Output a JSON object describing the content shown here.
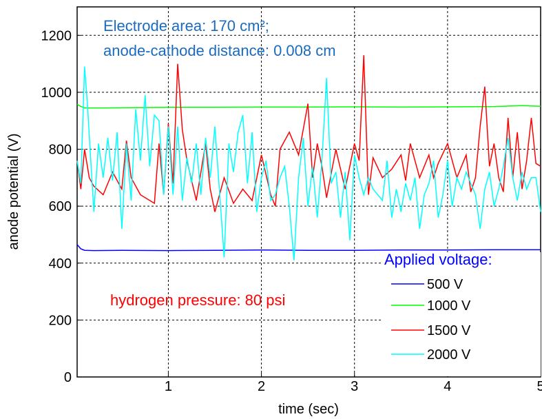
{
  "chart_data": {
    "type": "line",
    "xlabel": "time (sec)",
    "ylabel": "anode potential (V)",
    "xlim": [
      0.02,
      5.0
    ],
    "ylim": [
      0,
      1300
    ],
    "xticks": [
      1,
      2,
      3,
      4,
      5
    ],
    "yticks": [
      0,
      200,
      400,
      600,
      800,
      1000,
      1200
    ],
    "grid": true,
    "annotations": {
      "electrode_line1": "Electrode area: 170 cm²;",
      "electrode_line2": "anode-cathode distance: 0.008 cm",
      "pressure": "hydrogen pressure: 80 psi",
      "legend_title": "Applied voltage:"
    },
    "colors": {
      "s500": "#0000ff",
      "s1000": "#00ff00",
      "s1500": "#ff0000",
      "s2000": "#00ffff",
      "annot_blue": "#1a6bbf",
      "annot_red": "#ff0000",
      "legend_title": "#0000ff"
    },
    "series": [
      {
        "name": "500 V",
        "x": [
          0.02,
          0.06,
          0.1,
          0.2,
          0.5,
          1.0,
          1.5,
          2.0,
          2.5,
          3.0,
          3.5,
          4.0,
          4.5,
          5.0
        ],
        "values": [
          465,
          450,
          445,
          444,
          445,
          444,
          445,
          446,
          445,
          445,
          446,
          446,
          447,
          447
        ]
      },
      {
        "name": "1000 V",
        "x": [
          0.02,
          0.06,
          0.1,
          0.3,
          0.6,
          1.0,
          1.5,
          2.0,
          2.5,
          3.0,
          3.5,
          4.0,
          4.5,
          4.8,
          5.0
        ],
        "values": [
          958,
          950,
          945,
          945,
          946,
          947,
          947,
          948,
          948,
          949,
          948,
          949,
          950,
          953,
          951
        ]
      },
      {
        "name": "1500 V",
        "x": [
          0.02,
          0.06,
          0.1,
          0.15,
          0.2,
          0.3,
          0.4,
          0.5,
          0.55,
          0.6,
          0.7,
          0.8,
          0.85,
          0.9,
          0.95,
          1.0,
          1.05,
          1.1,
          1.15,
          1.2,
          1.3,
          1.4,
          1.45,
          1.5,
          1.6,
          1.7,
          1.8,
          1.9,
          2.0,
          2.1,
          2.15,
          2.2,
          2.3,
          2.4,
          2.5,
          2.55,
          2.6,
          2.65,
          2.7,
          2.8,
          2.9,
          3.0,
          3.05,
          3.1,
          3.15,
          3.2,
          3.3,
          3.4,
          3.5,
          3.55,
          3.6,
          3.7,
          3.8,
          3.85,
          3.9,
          4.0,
          4.1,
          4.2,
          4.25,
          4.3,
          4.35,
          4.4,
          4.45,
          4.5,
          4.55,
          4.6,
          4.65,
          4.7,
          4.75,
          4.8,
          4.85,
          4.9,
          4.95,
          5.0
        ],
        "values": [
          760,
          660,
          800,
          700,
          670,
          640,
          720,
          660,
          830,
          700,
          640,
          620,
          610,
          820,
          640,
          890,
          680,
          1100,
          870,
          760,
          620,
          820,
          660,
          580,
          700,
          610,
          660,
          620,
          780,
          640,
          600,
          800,
          860,
          780,
          960,
          700,
          820,
          740,
          630,
          800,
          660,
          820,
          760,
          1130,
          640,
          770,
          700,
          730,
          780,
          690,
          820,
          700,
          780,
          700,
          750,
          820,
          700,
          780,
          650,
          700,
          880,
          1020,
          740,
          820,
          700,
          650,
          910,
          700,
          860,
          660,
          760,
          910,
          750,
          740
        ]
      },
      {
        "name": "2000 V",
        "x": [
          0.02,
          0.06,
          0.1,
          0.13,
          0.17,
          0.2,
          0.25,
          0.3,
          0.35,
          0.4,
          0.45,
          0.5,
          0.55,
          0.6,
          0.65,
          0.7,
          0.75,
          0.8,
          0.85,
          0.9,
          0.95,
          1.0,
          1.05,
          1.1,
          1.15,
          1.2,
          1.25,
          1.3,
          1.35,
          1.4,
          1.45,
          1.5,
          1.55,
          1.6,
          1.65,
          1.7,
          1.75,
          1.8,
          1.85,
          1.9,
          1.95,
          2.0,
          2.05,
          2.1,
          2.15,
          2.2,
          2.25,
          2.3,
          2.35,
          2.4,
          2.45,
          2.5,
          2.55,
          2.6,
          2.65,
          2.7,
          2.75,
          2.8,
          2.85,
          2.9,
          2.95,
          3.0,
          3.05,
          3.1,
          3.15,
          3.2,
          3.25,
          3.3,
          3.35,
          3.4,
          3.45,
          3.5,
          3.55,
          3.6,
          3.65,
          3.7,
          3.75,
          3.8,
          3.85,
          3.9,
          3.95,
          4.0,
          4.05,
          4.1,
          4.15,
          4.2,
          4.25,
          4.3,
          4.35,
          4.4,
          4.45,
          4.5,
          4.55,
          4.6,
          4.65,
          4.7,
          4.75,
          4.8,
          4.85,
          4.9,
          4.95,
          5.0
        ],
        "values": [
          760,
          680,
          1090,
          960,
          740,
          580,
          820,
          700,
          840,
          690,
          860,
          520,
          820,
          620,
          940,
          760,
          990,
          740,
          920,
          900,
          640,
          880,
          640,
          880,
          620,
          770,
          680,
          820,
          640,
          840,
          700,
          880,
          650,
          420,
          820,
          720,
          860,
          920,
          680,
          860,
          580,
          700,
          760,
          620,
          640,
          700,
          740,
          600,
          410,
          700,
          840,
          600,
          740,
          560,
          760,
          1050,
          680,
          720,
          560,
          720,
          480,
          780,
          700,
          640,
          700,
          660,
          640,
          620,
          760,
          560,
          660,
          580,
          680,
          620,
          700,
          520,
          640,
          680,
          760,
          560,
          640,
          760,
          600,
          700,
          660,
          720,
          680,
          640,
          520,
          660,
          720,
          600,
          660,
          740,
          840,
          700,
          620,
          720,
          660,
          700,
          700,
          580
        ]
      }
    ]
  }
}
